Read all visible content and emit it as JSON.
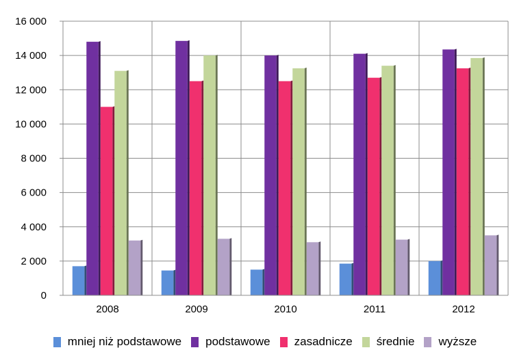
{
  "chart_data": {
    "type": "bar",
    "categories": [
      "2008",
      "2009",
      "2010",
      "2011",
      "2012"
    ],
    "series": [
      {
        "name": "mniej niż podstawowe",
        "color": "#5b8fd9",
        "values": [
          1700,
          1450,
          1500,
          1850,
          2000
        ]
      },
      {
        "name": "podstawowe",
        "color": "#7030a0",
        "values": [
          14800,
          14850,
          14000,
          14100,
          14350
        ]
      },
      {
        "name": "zasadnicze",
        "color": "#f0306e",
        "values": [
          11000,
          12500,
          12500,
          12700,
          13250
        ]
      },
      {
        "name": "średnie",
        "color": "#c3d69b",
        "values": [
          13100,
          14000,
          13250,
          13400,
          13850
        ]
      },
      {
        "name": "wyższe",
        "color": "#b3a2c7",
        "values": [
          3200,
          3300,
          3100,
          3250,
          3500
        ]
      }
    ],
    "y_ticks": [
      "0",
      "2 000",
      "4 000",
      "6 000",
      "8 000",
      "10 000",
      "12 000",
      "14 000",
      "16 000"
    ],
    "ylim": [
      0,
      16000
    ],
    "grid": true,
    "legend_position": "bottom"
  }
}
